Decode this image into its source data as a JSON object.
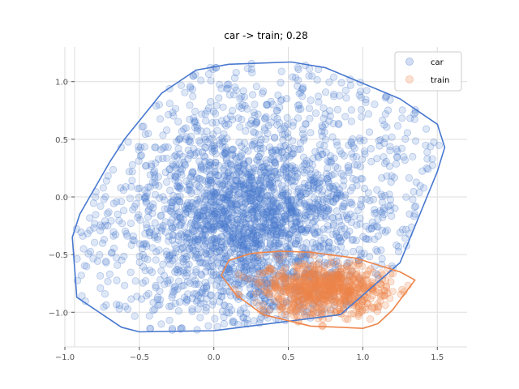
{
  "chart_data": {
    "type": "scatter",
    "title": "car -> train; 0.28",
    "xlabel": "",
    "ylabel": "",
    "xlim": [
      -1.0,
      1.7
    ],
    "ylim": [
      -1.3,
      1.3
    ],
    "xticks": [
      -1.0,
      -0.5,
      0.0,
      0.5,
      1.0,
      1.5
    ],
    "xtick_labels": [
      "−1.0",
      "−0.5",
      "0.0",
      "0.5",
      "1.0",
      "1.5"
    ],
    "yticks": [
      -1.0,
      -0.5,
      0.0,
      0.5,
      1.0
    ],
    "ytick_labels": [
      "−1.0",
      "−0.5",
      "0.0",
      "0.5",
      "1.0"
    ],
    "grid": true,
    "legend_position": "top-right",
    "series": [
      {
        "name": "car",
        "color": "#4878cf",
        "hull": [
          [
            -0.95,
            -0.35
          ],
          [
            -0.92,
            -0.87
          ],
          [
            -0.62,
            -1.13
          ],
          [
            -0.5,
            -1.17
          ],
          [
            0.0,
            -1.16
          ],
          [
            0.85,
            -1.02
          ],
          [
            1.25,
            -0.57
          ],
          [
            1.5,
            0.22
          ],
          [
            1.55,
            0.43
          ],
          [
            1.5,
            0.63
          ],
          [
            1.25,
            0.85
          ],
          [
            0.75,
            1.12
          ],
          [
            0.52,
            1.17
          ],
          [
            0.1,
            1.15
          ],
          [
            -0.12,
            1.1
          ],
          [
            -0.35,
            0.9
          ],
          [
            -0.6,
            0.5
          ],
          [
            -0.7,
            0.3
          ],
          [
            -0.9,
            -0.15
          ]
        ]
      },
      {
        "name": "train",
        "color": "#ee854a",
        "hull": [
          [
            0.05,
            -0.68
          ],
          [
            0.15,
            -0.85
          ],
          [
            0.33,
            -1.02
          ],
          [
            0.65,
            -1.12
          ],
          [
            0.85,
            -1.13
          ],
          [
            1.0,
            -1.14
          ],
          [
            1.1,
            -1.1
          ],
          [
            1.2,
            -0.98
          ],
          [
            1.35,
            -0.72
          ],
          [
            1.25,
            -0.65
          ],
          [
            0.95,
            -0.53
          ],
          [
            0.65,
            -0.48
          ],
          [
            0.45,
            -0.47
          ],
          [
            0.25,
            -0.49
          ],
          [
            0.1,
            -0.55
          ]
        ]
      }
    ]
  }
}
